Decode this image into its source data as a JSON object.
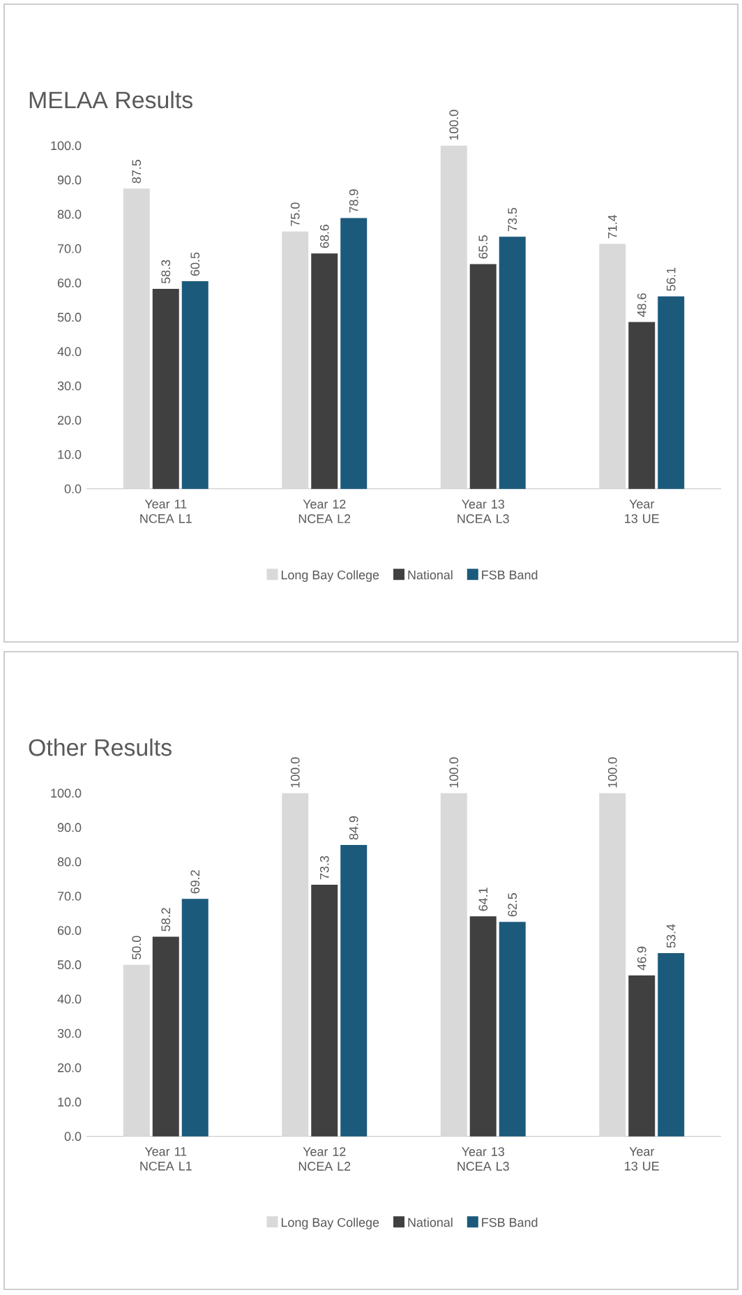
{
  "chart_data": [
    {
      "type": "bar",
      "title": "MELAA Results",
      "categories": [
        "Year 11 NCEA L1",
        "Year 12 NCEA L2",
        "Year 13 NCEA L3",
        "Year 13 UE"
      ],
      "series": [
        {
          "name": "Long Bay College",
          "color": "#d9d9d9",
          "values": [
            87.5,
            75.0,
            100.0,
            71.4
          ],
          "value_labels": [
            "87.5",
            "75.0",
            "100.0",
            "71.4"
          ]
        },
        {
          "name": "National",
          "color": "#404040",
          "values": [
            58.3,
            68.6,
            65.5,
            48.6
          ],
          "value_labels": [
            "58.3",
            "68.6",
            "65.5",
            "48.6"
          ]
        },
        {
          "name": "FSB Band",
          "color": "#1c5a7c",
          "values": [
            60.5,
            78.9,
            73.5,
            56.1
          ],
          "value_labels": [
            "60.5",
            "78.9",
            "73.5",
            "56.1"
          ]
        }
      ],
      "ylim": [
        0,
        100
      ],
      "yticks": [
        {
          "value": 0,
          "label": "0.0"
        },
        {
          "value": 10,
          "label": "10.0"
        },
        {
          "value": 20,
          "label": "20.0"
        },
        {
          "value": 30,
          "label": "30.0"
        },
        {
          "value": 40,
          "label": "40.0"
        },
        {
          "value": 50,
          "label": "50.0"
        },
        {
          "value": 60,
          "label": "60.0"
        },
        {
          "value": 70,
          "label": "70.0"
        },
        {
          "value": 80,
          "label": "80.0"
        },
        {
          "value": 90,
          "label": "90.0"
        },
        {
          "value": 100,
          "label": "100.0"
        }
      ],
      "legend": "bottom"
    },
    {
      "type": "bar",
      "title": "Other Results",
      "categories": [
        "Year 11 NCEA L1",
        "Year 12 NCEA L2",
        "Year 13 NCEA L3",
        "Year 13 UE"
      ],
      "series": [
        {
          "name": "Long Bay College",
          "color": "#d9d9d9",
          "values": [
            50.0,
            100.0,
            100.0,
            100.0
          ],
          "value_labels": [
            "50.0",
            "100.0",
            "100.0",
            "100.0"
          ]
        },
        {
          "name": "National",
          "color": "#404040",
          "values": [
            58.2,
            73.3,
            64.1,
            46.9
          ],
          "value_labels": [
            "58.2",
            "73.3",
            "64.1",
            "46.9"
          ]
        },
        {
          "name": "FSB Band",
          "color": "#1c5a7c",
          "values": [
            69.2,
            84.9,
            62.5,
            53.4
          ],
          "value_labels": [
            "69.2",
            "84.9",
            "62.5",
            "53.4"
          ]
        }
      ],
      "ylim": [
        0,
        100
      ],
      "yticks": [
        {
          "value": 0,
          "label": "0.0"
        },
        {
          "value": 10,
          "label": "10.0"
        },
        {
          "value": 20,
          "label": "20.0"
        },
        {
          "value": 30,
          "label": "30.0"
        },
        {
          "value": 40,
          "label": "40.0"
        },
        {
          "value": 50,
          "label": "50.0"
        },
        {
          "value": 60,
          "label": "60.0"
        },
        {
          "value": 70,
          "label": "70.0"
        },
        {
          "value": 80,
          "label": "80.0"
        },
        {
          "value": 90,
          "label": "90.0"
        },
        {
          "value": 100,
          "label": "100.0"
        }
      ],
      "legend": "bottom"
    }
  ]
}
